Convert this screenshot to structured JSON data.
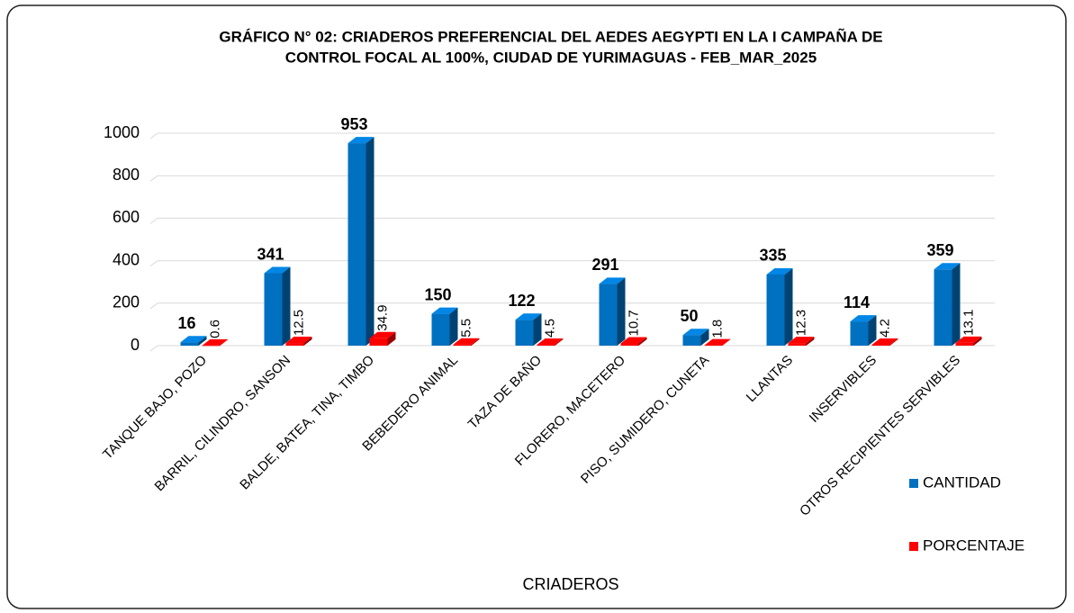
{
  "chart_data": {
    "type": "bar3d",
    "title": [
      "GRÁFICO N° 02: CRIADEROS PREFERENCIAL DEL AEDES AEGYPTI EN LA I CAMPAÑA DE",
      "CONTROL FOCAL AL 100%, CIUDAD DE YURIMAGUAS - FEB_MAR_2025"
    ],
    "x_label": "CRIADEROS",
    "categories": [
      "TANQUE BAJO, POZO",
      "BARRIL, CILINDRO, SANSON",
      "BALDE, BATEA, TINA, TIMBO",
      "BEBEDERO ANIMAL",
      "TAZA DE BAÑO",
      "FLORERO, MACETERO",
      "PISO, SUMIDERO, CUNETA",
      "LLANTAS",
      "INSERVIBLES",
      "OTROS RECIPIENTES SERVIBLES"
    ],
    "series": [
      {
        "name": "CANTIDAD",
        "color": "#0070c0",
        "values": [
          16,
          341,
          953,
          150,
          122,
          291,
          50,
          335,
          114,
          359
        ]
      },
      {
        "name": "PORCENTAJE",
        "color": "#ff0000",
        "values": [
          0.6,
          12.5,
          34.9,
          5.5,
          4.5,
          10.7,
          1.8,
          12.3,
          4.2,
          13.1
        ]
      }
    ],
    "ylim": [
      0,
      1000
    ],
    "yticks": [
      0,
      200,
      400,
      600,
      800,
      1000
    ],
    "grid": true,
    "legend": "right"
  }
}
